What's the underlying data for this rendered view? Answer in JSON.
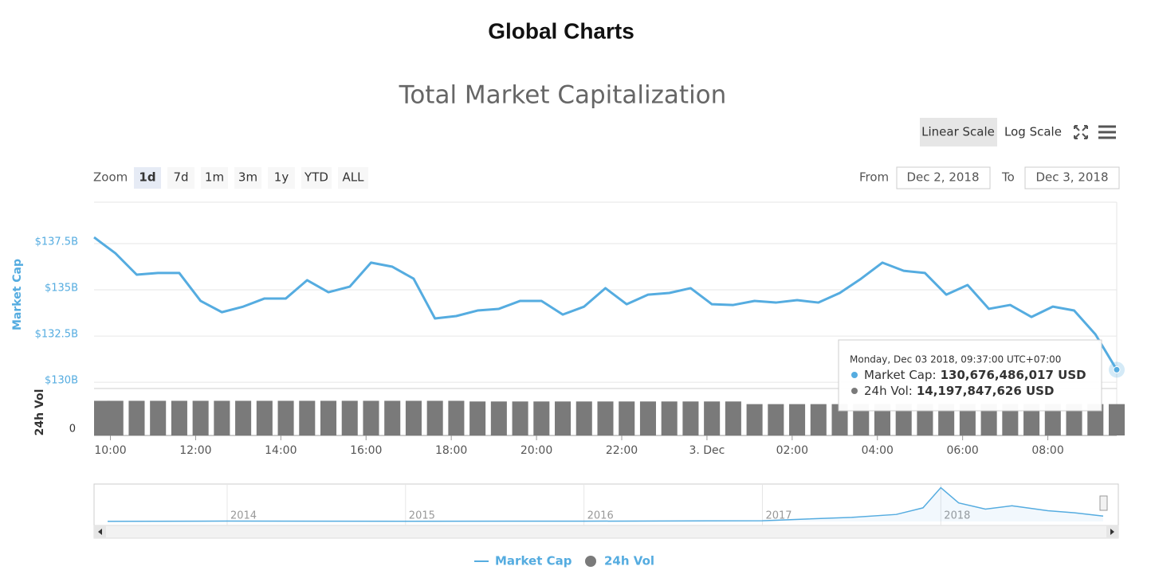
{
  "header": {
    "title": "Global Charts"
  },
  "ui": {
    "scale_buttons": [
      "Linear Scale",
      "Log Scale"
    ],
    "zoom_label": "Zoom",
    "zoom_buttons": [
      "1d",
      "7d",
      "1m",
      "3m",
      "1y",
      "YTD",
      "ALL"
    ],
    "from_label": "From",
    "from_value": "Dec 2, 2018",
    "to_label": "To",
    "to_value": "Dec 3, 2018",
    "tooltip": {
      "title": "Monday, Dec 03 2018, 09:37:00 UTC+07:00",
      "items": [
        {
          "name": "Market Cap:",
          "value": "130,676,486,017 USD"
        },
        {
          "name": "24h Vol:",
          "value": "14,197,847,626 USD"
        }
      ]
    }
  },
  "chart_data": {
    "type": "line",
    "title": "Total Market Capitalization",
    "ylabel": "Market Cap",
    "y2label": "24h Vol",
    "grid": true,
    "x": [
      "2018-12-02 09:37",
      "2018-12-02 10:07",
      "2018-12-02 10:37",
      "2018-12-02 11:07",
      "2018-12-02 11:37",
      "2018-12-02 12:07",
      "2018-12-02 12:37",
      "2018-12-02 13:07",
      "2018-12-02 13:37",
      "2018-12-02 14:07",
      "2018-12-02 14:37",
      "2018-12-02 15:07",
      "2018-12-02 15:37",
      "2018-12-02 16:07",
      "2018-12-02 16:37",
      "2018-12-02 17:07",
      "2018-12-02 17:37",
      "2018-12-02 18:07",
      "2018-12-02 18:37",
      "2018-12-02 19:07",
      "2018-12-02 19:37",
      "2018-12-02 20:07",
      "2018-12-02 20:37",
      "2018-12-02 21:07",
      "2018-12-02 21:37",
      "2018-12-02 22:07",
      "2018-12-02 22:37",
      "2018-12-02 23:07",
      "2018-12-02 23:37",
      "2018-12-03 00:07",
      "2018-12-03 00:37",
      "2018-12-03 01:07",
      "2018-12-03 01:37",
      "2018-12-03 02:07",
      "2018-12-03 02:37",
      "2018-12-03 03:07",
      "2018-12-03 03:37",
      "2018-12-03 04:07",
      "2018-12-03 04:37",
      "2018-12-03 05:07",
      "2018-12-03 05:37",
      "2018-12-03 06:07",
      "2018-12-03 06:37",
      "2018-12-03 07:07",
      "2018-12-03 07:37",
      "2018-12-03 08:07",
      "2018-12-03 08:37",
      "2018-12-03 09:07",
      "2018-12-03 09:37"
    ],
    "xlim": [
      "2018-12-02 09:37",
      "2018-12-03 09:37"
    ],
    "xticks": [
      {
        "value": "2018-12-02 10:00",
        "label": "10:00"
      },
      {
        "value": "2018-12-02 12:00",
        "label": "12:00"
      },
      {
        "value": "2018-12-02 14:00",
        "label": "14:00"
      },
      {
        "value": "2018-12-02 16:00",
        "label": "16:00"
      },
      {
        "value": "2018-12-02 18:00",
        "label": "18:00"
      },
      {
        "value": "2018-12-02 20:00",
        "label": "20:00"
      },
      {
        "value": "2018-12-02 22:00",
        "label": "22:00"
      },
      {
        "value": "2018-12-03 00:00",
        "label": "3. Dec"
      },
      {
        "value": "2018-12-03 02:00",
        "label": "02:00"
      },
      {
        "value": "2018-12-03 04:00",
        "label": "04:00"
      },
      {
        "value": "2018-12-03 06:00",
        "label": "06:00"
      },
      {
        "value": "2018-12-03 08:00",
        "label": "08:00"
      }
    ],
    "ylim": [
      129660000000,
      139740000000
    ],
    "yticks": [
      {
        "value": 130000000000,
        "label": "$130B"
      },
      {
        "value": 132500000000,
        "label": "$132.5B"
      },
      {
        "value": 135000000000,
        "label": "$135B"
      },
      {
        "value": 137500000000,
        "label": "$137.5B"
      }
    ],
    "y2lim": [
      0,
      20550000000
    ],
    "y2ticks": [
      0
    ],
    "series": [
      {
        "name": "Market Cap",
        "color": "#55ace0",
        "values": [
          137840000000,
          136980000000,
          135820000000,
          135910000000,
          135910000000,
          134400000000,
          133790000000,
          134090000000,
          134530000000,
          134530000000,
          135520000000,
          134870000000,
          135170000000,
          136470000000,
          136250000000,
          135600000000,
          133450000000,
          133580000000,
          133880000000,
          133970000000,
          134400000000,
          134400000000,
          133660000000,
          134090000000,
          135090000000,
          134220000000,
          134740000000,
          134830000000,
          135090000000,
          134220000000,
          134180000000,
          134400000000,
          134310000000,
          134440000000,
          134310000000,
          134830000000,
          135600000000,
          136470000000,
          136030000000,
          135910000000,
          134740000000,
          135260000000,
          133970000000,
          134180000000,
          133530000000,
          134090000000,
          133880000000,
          132590000000,
          130676486017
        ]
      },
      {
        "name": "24h Vol",
        "type": "column",
        "axis": "y2",
        "color": "#7a7a7a",
        "values": [
          15700000000,
          15700000000,
          15700000000,
          15700000000,
          15700000000,
          15700000000,
          15700000000,
          15700000000,
          15700000000,
          15700000000,
          15700000000,
          15700000000,
          15700000000,
          15700000000,
          15700000000,
          15700000000,
          15700000000,
          15700000000,
          15400000000,
          15400000000,
          15400000000,
          15400000000,
          15400000000,
          15400000000,
          15400000000,
          15400000000,
          15400000000,
          15400000000,
          15400000000,
          15400000000,
          15400000000,
          14200000000,
          14200000000,
          14200000000,
          14200000000,
          14200000000,
          14200000000,
          14200000000,
          14200000000,
          14200000000,
          14200000000,
          14200000000,
          14200000000,
          14200000000,
          14200000000,
          14200000000,
          14200000000,
          14200000000,
          14197847626
        ]
      }
    ],
    "navigator": {
      "x": [
        2013.33,
        2014,
        2015,
        2016,
        2017,
        2017.5,
        2017.75,
        2017.9,
        2018.0,
        2018.1,
        2018.25,
        2018.4,
        2018.6,
        2018.75,
        2018.91
      ],
      "values": [
        1500000000,
        10000000000,
        5000000000,
        7000000000,
        18000000000,
        100000000000,
        170000000000,
        330000000000,
        820000000000,
        450000000000,
        300000000000,
        380000000000,
        260000000000,
        210000000000,
        130000000000
      ],
      "xlim": [
        2013.33,
        2018.91
      ],
      "ylim": [
        0,
        830000000000
      ],
      "xticks": [
        2014,
        2015,
        2016,
        2017,
        2018
      ]
    }
  }
}
